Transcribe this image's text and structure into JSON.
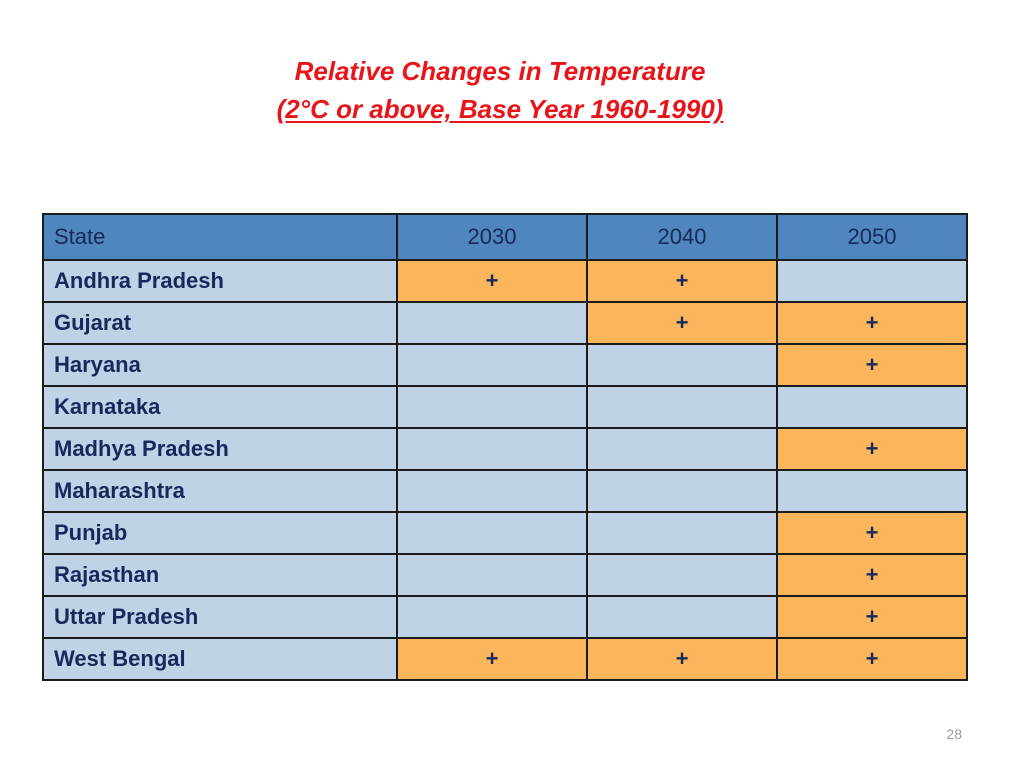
{
  "title": {
    "line1": "Relative Changes in Temperature",
    "line2": "(2°C or above, Base Year 1960-1990)"
  },
  "table": {
    "headers": [
      "State",
      "2030",
      "2040",
      "2050"
    ],
    "rows": [
      {
        "state": "Andhra Pradesh",
        "cells": [
          "+",
          "+",
          ""
        ]
      },
      {
        "state": "Gujarat",
        "cells": [
          "",
          "+",
          "+"
        ]
      },
      {
        "state": "Haryana",
        "cells": [
          "",
          "",
          "+"
        ]
      },
      {
        "state": "Karnataka",
        "cells": [
          "",
          "",
          ""
        ]
      },
      {
        "state": "Madhya Pradesh",
        "cells": [
          "",
          "",
          "+"
        ]
      },
      {
        "state": "Maharashtra",
        "cells": [
          "",
          "",
          ""
        ]
      },
      {
        "state": "Punjab",
        "cells": [
          "",
          "",
          "+"
        ]
      },
      {
        "state": "Rajasthan",
        "cells": [
          "",
          "",
          "+"
        ]
      },
      {
        "state": "Uttar Pradesh",
        "cells": [
          "",
          "",
          "+"
        ]
      },
      {
        "state": "West Bengal",
        "cells": [
          "+",
          "+",
          "+"
        ]
      }
    ]
  },
  "colors": {
    "title": "#e8141a",
    "header_fill": "#4f86be",
    "cell_fill": "#bfd2e6",
    "highlight_fill": "#fbb55a",
    "text": "#17285a"
  },
  "page_number": "28"
}
